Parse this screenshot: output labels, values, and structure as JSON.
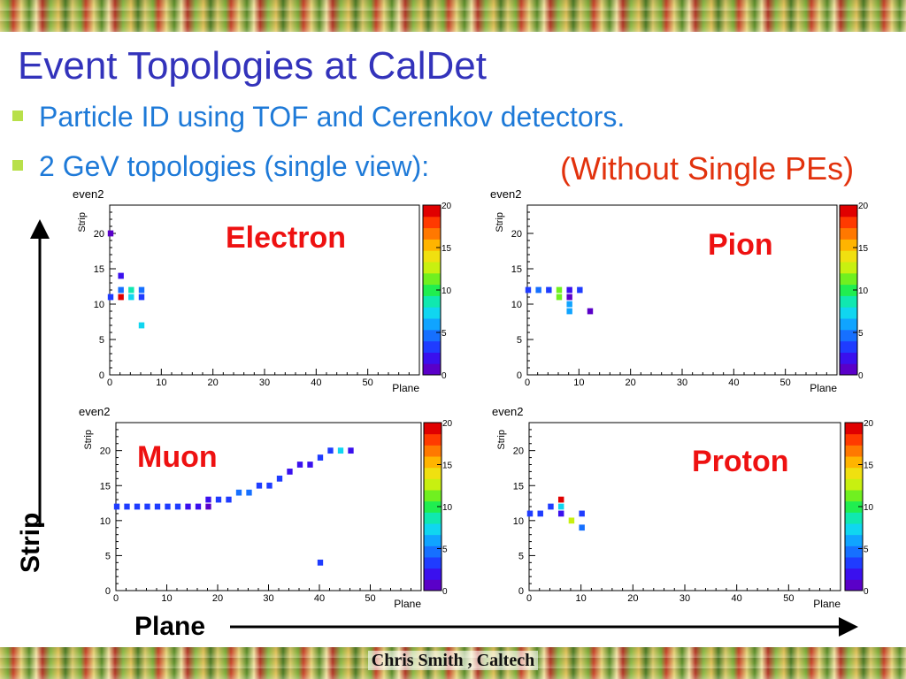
{
  "slide": {
    "title": "Event Topologies at CalDet",
    "bullets": [
      "Particle ID using TOF and Cerenkov detectors.",
      "2 GeV topologies (single view):"
    ],
    "note": "(Without Single PEs)",
    "strip_label": "Strip",
    "plane_label": "Plane",
    "footer": "Chris Smith , Caltech"
  },
  "colors": {
    "title": "#3333bb",
    "bullet_text": "#1e7ad8",
    "bullet_marker": "#b8e04a",
    "note": "#e2320d",
    "panel_label": "#ee1111"
  },
  "icons": [
    "bullet-square-icon",
    "up-arrow-icon",
    "right-arrow-icon"
  ],
  "chart_data": [
    {
      "type": "heatmap",
      "histogram_name": "even2",
      "panel_label": "Electron",
      "xlabel": "Plane",
      "ylabel": "Strip",
      "xlim": [
        0,
        60
      ],
      "ylim": [
        0,
        24
      ],
      "x_ticks": [
        0,
        10,
        20,
        30,
        40,
        50
      ],
      "y_ticks": [
        0,
        5,
        10,
        15,
        20
      ],
      "z_range": [
        0,
        20
      ],
      "z_ticks": [
        0,
        5,
        10,
        15,
        20
      ],
      "points": [
        {
          "x": 0,
          "y": 20,
          "z": 1
        },
        {
          "x": 0,
          "y": 11,
          "z": 3
        },
        {
          "x": 2,
          "y": 14,
          "z": 2
        },
        {
          "x": 2,
          "y": 12,
          "z": 4
        },
        {
          "x": 2,
          "y": 11,
          "z": 19
        },
        {
          "x": 4,
          "y": 12,
          "z": 8
        },
        {
          "x": 4,
          "y": 11,
          "z": 7
        },
        {
          "x": 6,
          "y": 12,
          "z": 4
        },
        {
          "x": 6,
          "y": 11,
          "z": 3
        },
        {
          "x": 6,
          "y": 7,
          "z": 7
        }
      ]
    },
    {
      "type": "heatmap",
      "histogram_name": "even2",
      "panel_label": "Pion",
      "xlabel": "Plane",
      "ylabel": "Strip",
      "xlim": [
        0,
        60
      ],
      "ylim": [
        0,
        24
      ],
      "x_ticks": [
        0,
        10,
        20,
        30,
        40,
        50
      ],
      "y_ticks": [
        0,
        5,
        10,
        15,
        20
      ],
      "z_range": [
        0,
        20
      ],
      "z_ticks": [
        0,
        5,
        10,
        15,
        20
      ],
      "points": [
        {
          "x": 0,
          "y": 12,
          "z": 3
        },
        {
          "x": 2,
          "y": 12,
          "z": 4
        },
        {
          "x": 4,
          "y": 12,
          "z": 3
        },
        {
          "x": 6,
          "y": 12,
          "z": 11
        },
        {
          "x": 6,
          "y": 11,
          "z": 11
        },
        {
          "x": 8,
          "y": 12,
          "z": 2
        },
        {
          "x": 8,
          "y": 11,
          "z": 1
        },
        {
          "x": 8,
          "y": 10,
          "z": 6
        },
        {
          "x": 8,
          "y": 9,
          "z": 6
        },
        {
          "x": 10,
          "y": 12,
          "z": 3
        },
        {
          "x": 12,
          "y": 9,
          "z": 1
        }
      ]
    },
    {
      "type": "heatmap",
      "histogram_name": "even2",
      "panel_label": "Muon",
      "xlabel": "Plane",
      "ylabel": "Strip",
      "xlim": [
        0,
        60
      ],
      "ylim": [
        0,
        24
      ],
      "x_ticks": [
        0,
        10,
        20,
        30,
        40,
        50
      ],
      "y_ticks": [
        0,
        5,
        10,
        15,
        20
      ],
      "z_range": [
        0,
        20
      ],
      "z_ticks": [
        0,
        5,
        10,
        15,
        20
      ],
      "points": [
        {
          "x": 0,
          "y": 12,
          "z": 3
        },
        {
          "x": 2,
          "y": 12,
          "z": 3
        },
        {
          "x": 4,
          "y": 12,
          "z": 3
        },
        {
          "x": 6,
          "y": 12,
          "z": 3
        },
        {
          "x": 8,
          "y": 12,
          "z": 3
        },
        {
          "x": 10,
          "y": 12,
          "z": 3
        },
        {
          "x": 12,
          "y": 12,
          "z": 3
        },
        {
          "x": 14,
          "y": 12,
          "z": 2
        },
        {
          "x": 16,
          "y": 12,
          "z": 2
        },
        {
          "x": 18,
          "y": 12,
          "z": 1
        },
        {
          "x": 18,
          "y": 13,
          "z": 2
        },
        {
          "x": 20,
          "y": 13,
          "z": 3
        },
        {
          "x": 22,
          "y": 13,
          "z": 3
        },
        {
          "x": 24,
          "y": 14,
          "z": 4
        },
        {
          "x": 26,
          "y": 14,
          "z": 4
        },
        {
          "x": 28,
          "y": 15,
          "z": 3
        },
        {
          "x": 30,
          "y": 15,
          "z": 3
        },
        {
          "x": 32,
          "y": 16,
          "z": 3
        },
        {
          "x": 34,
          "y": 17,
          "z": 2
        },
        {
          "x": 36,
          "y": 18,
          "z": 2
        },
        {
          "x": 38,
          "y": 18,
          "z": 2
        },
        {
          "x": 40,
          "y": 19,
          "z": 3
        },
        {
          "x": 42,
          "y": 20,
          "z": 3
        },
        {
          "x": 44,
          "y": 20,
          "z": 7
        },
        {
          "x": 46,
          "y": 20,
          "z": 2
        },
        {
          "x": 40,
          "y": 4,
          "z": 3
        }
      ]
    },
    {
      "type": "heatmap",
      "histogram_name": "even2",
      "panel_label": "Proton",
      "xlabel": "Plane",
      "ylabel": "Strip",
      "xlim": [
        0,
        60
      ],
      "ylim": [
        0,
        24
      ],
      "x_ticks": [
        0,
        10,
        20,
        30,
        40,
        50
      ],
      "y_ticks": [
        0,
        5,
        10,
        15,
        20
      ],
      "z_range": [
        0,
        20
      ],
      "z_ticks": [
        0,
        5,
        10,
        15,
        20
      ],
      "points": [
        {
          "x": 0,
          "y": 11,
          "z": 3
        },
        {
          "x": 2,
          "y": 11,
          "z": 3
        },
        {
          "x": 4,
          "y": 12,
          "z": 3
        },
        {
          "x": 6,
          "y": 13,
          "z": 19
        },
        {
          "x": 6,
          "y": 12,
          "z": 7
        },
        {
          "x": 6,
          "y": 11,
          "z": 2
        },
        {
          "x": 8,
          "y": 10,
          "z": 12
        },
        {
          "x": 10,
          "y": 11,
          "z": 3
        },
        {
          "x": 10,
          "y": 9,
          "z": 5
        }
      ]
    }
  ]
}
